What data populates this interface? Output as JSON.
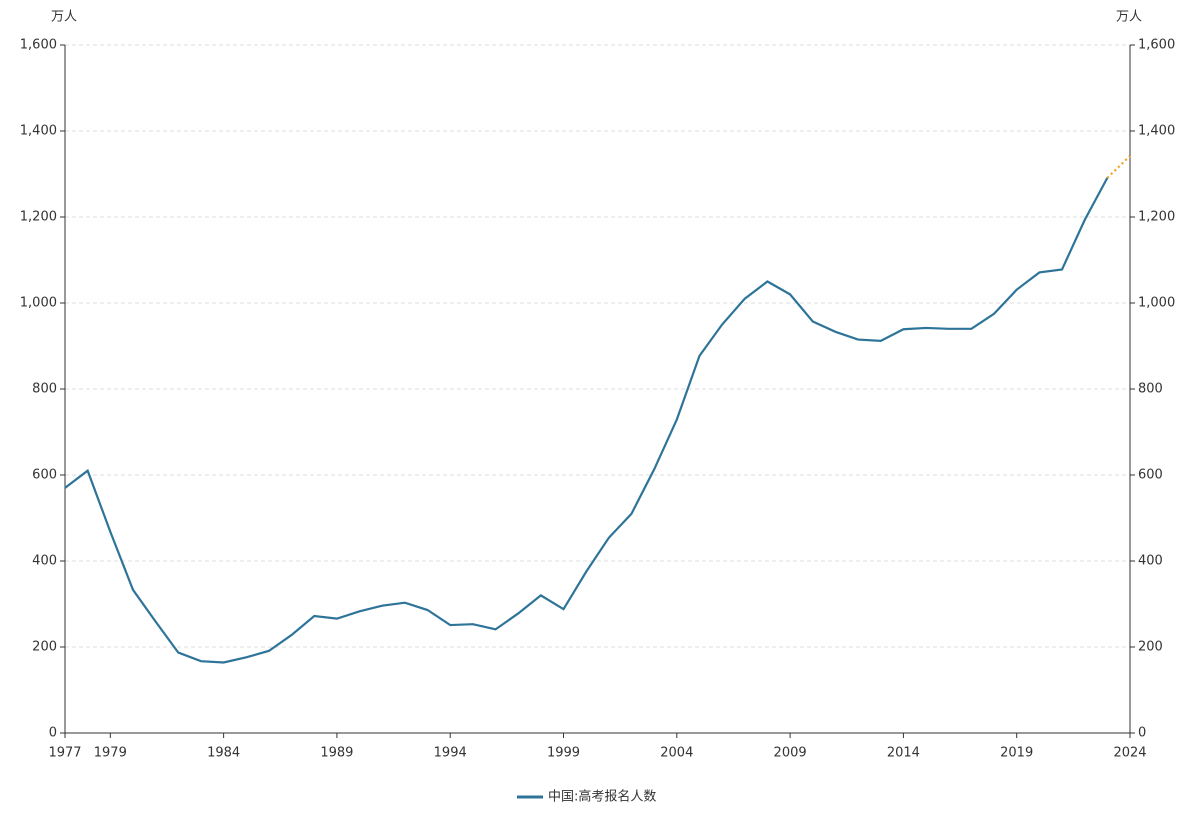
{
  "chart_data": {
    "type": "line",
    "y_label": "万人",
    "y2_label": "万人",
    "x": [
      1977,
      1978,
      1979,
      1980,
      1981,
      1982,
      1983,
      1984,
      1985,
      1986,
      1987,
      1988,
      1989,
      1990,
      1991,
      1992,
      1993,
      1994,
      1995,
      1996,
      1997,
      1998,
      1999,
      2000,
      2001,
      2002,
      2003,
      2004,
      2005,
      2006,
      2007,
      2008,
      2009,
      2010,
      2011,
      2012,
      2013,
      2014,
      2015,
      2016,
      2017,
      2018,
      2019,
      2020,
      2021,
      2022,
      2023,
      2024
    ],
    "series": [
      {
        "name": "中国:高考报名人数",
        "color": "#2e7499",
        "style": "solid",
        "values": [
          570,
          610,
          468,
          333,
          259,
          187,
          167,
          164,
          176,
          191,
          228,
          272,
          266,
          283,
          296,
          303,
          286,
          251,
          253,
          241,
          278,
          320,
          288,
          375,
          454,
          510,
          613,
          729,
          877,
          950,
          1010,
          1050,
          1020,
          957,
          933,
          915,
          912,
          939,
          942,
          940,
          940,
          975,
          1031,
          1071,
          1078,
          1193,
          1291,
          null
        ]
      },
      {
        "color": "#f0a020",
        "style": "dotted",
        "values": [
          null,
          null,
          null,
          null,
          null,
          null,
          null,
          null,
          null,
          null,
          null,
          null,
          null,
          null,
          null,
          null,
          null,
          null,
          null,
          null,
          null,
          null,
          null,
          null,
          null,
          null,
          null,
          null,
          null,
          null,
          null,
          null,
          null,
          null,
          null,
          null,
          null,
          null,
          null,
          null,
          null,
          null,
          null,
          null,
          null,
          null,
          1291,
          1342
        ]
      }
    ],
    "xlim": [
      1977,
      2024
    ],
    "xticks": [
      1977,
      1979,
      1984,
      1989,
      1994,
      1999,
      2004,
      2009,
      2014,
      2019,
      2024
    ],
    "ylim": [
      0,
      1600
    ],
    "yticks": [
      0,
      200,
      400,
      600,
      800,
      {
        "value": 1000,
        "label": "1,000"
      },
      {
        "value": 1200,
        "label": "1,200"
      },
      {
        "value": 1400,
        "label": "1,400"
      },
      {
        "value": 1600,
        "label": "1,600"
      }
    ],
    "y2lim": [
      0,
      1600
    ],
    "y2ticks": [
      0,
      200,
      400,
      600,
      800,
      {
        "value": 1000,
        "label": "1,000"
      },
      {
        "value": 1200,
        "label": "1,200"
      },
      {
        "value": 1400,
        "label": "1,400"
      },
      {
        "value": 1600,
        "label": "1,600"
      }
    ],
    "grid": true,
    "legend": "bottom"
  }
}
